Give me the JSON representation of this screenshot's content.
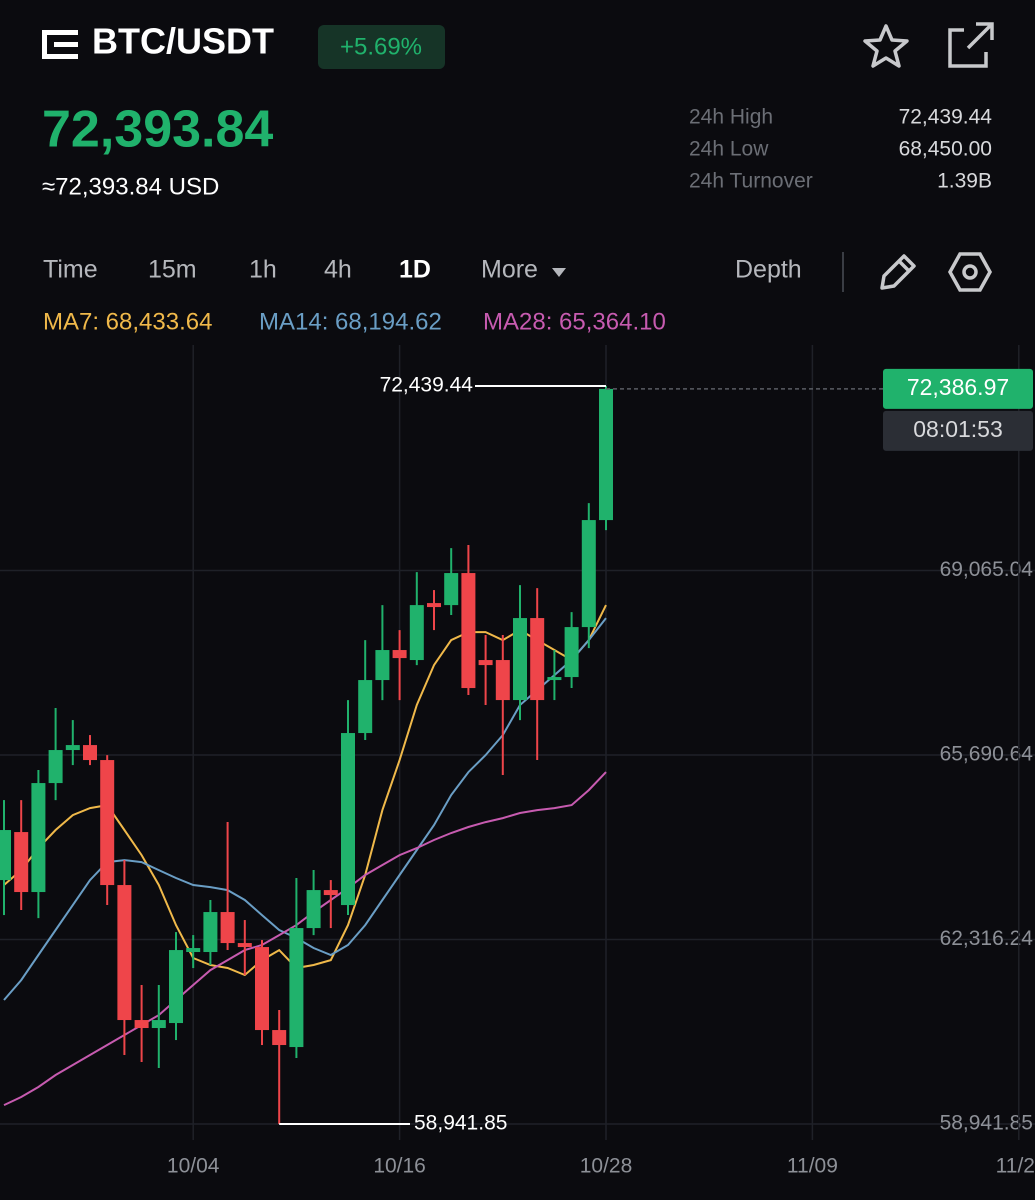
{
  "header": {
    "pair": "BTC/USDT",
    "change": "+5.69%",
    "price": "72,393.84",
    "price_usd": "≈72,393.84 USD"
  },
  "stats": [
    {
      "label": "24h High",
      "value": "72,439.44"
    },
    {
      "label": "24h Low",
      "value": "68,450.00"
    },
    {
      "label": "24h Turnover",
      "value": "1.39B"
    }
  ],
  "tabs": [
    "Time",
    "15m",
    "1h",
    "4h",
    "1D",
    "More"
  ],
  "depth": "Depth",
  "chart_data": {
    "type": "candlestick",
    "categories": [
      null,
      null,
      null,
      null,
      null,
      null,
      null,
      null,
      null,
      null,
      null,
      "10/04",
      null,
      null,
      null,
      null,
      null,
      null,
      null,
      null,
      null,
      null,
      null,
      "10/16",
      null,
      null,
      null,
      null,
      null,
      null,
      null,
      null,
      null,
      null,
      null,
      "10/28",
      null,
      null,
      null,
      null,
      null,
      null,
      null,
      null,
      null,
      null,
      null,
      "11/09",
      null,
      null,
      null,
      null,
      null,
      null,
      null,
      null,
      null,
      null,
      null,
      "11/2"
    ],
    "open": [
      63404,
      64282,
      63185,
      65178,
      65782,
      65873,
      65599,
      63313,
      60844,
      60698,
      60789,
      62088,
      62088,
      62819,
      62252,
      62179,
      60661,
      60350,
      62526,
      63221,
      62947,
      66093,
      67062,
      67611,
      67428,
      68470,
      68433,
      69019,
      67428,
      67428,
      66696,
      68196,
      67062,
      67117,
      68031,
      69988,
      null,
      null,
      null,
      null,
      null,
      null,
      null,
      null,
      null,
      null,
      null,
      null,
      null,
      null,
      null,
      null,
      null,
      null,
      null,
      null,
      null,
      null,
      null,
      null
    ],
    "high": [
      64867,
      64867,
      65416,
      66550,
      66330,
      66056,
      65690,
      63770,
      61484,
      61484,
      62453,
      62398,
      63039,
      64465,
      62673,
      62307,
      61027,
      63441,
      63587,
      63404,
      66696,
      67793,
      68433,
      67976,
      69037,
      68708,
      69476,
      69531,
      67885,
      67885,
      68799,
      68744,
      67611,
      68305,
      70299,
      72439.44,
      null,
      null,
      null,
      null,
      null,
      null,
      null,
      null,
      null,
      null,
      null,
      null,
      null,
      null,
      null,
      null,
      null,
      null,
      null,
      null,
      null,
      null,
      null,
      null
    ],
    "low": [
      62764,
      62856,
      62709,
      64867,
      65507,
      65507,
      62947,
      60204,
      60076,
      59966,
      60478,
      61795,
      61850,
      62124,
      61667,
      60387,
      58941.85,
      60149,
      62398,
      62526,
      62764,
      65965,
      66696,
      66696,
      67336,
      67976,
      68251,
      66788,
      66605,
      65325,
      66330,
      65599,
      66696,
      66916,
      67647,
      69805,
      null,
      null,
      null,
      null,
      null,
      null,
      null,
      null,
      null,
      null,
      null,
      null,
      null,
      null,
      null,
      null,
      null,
      null,
      null,
      null,
      null,
      null,
      null,
      null
    ],
    "close": [
      64319,
      63185,
      65178,
      65782,
      65873,
      65599,
      63313,
      60844,
      60698,
      60844,
      62124,
      62161,
      62819,
      62252,
      62179,
      60661,
      60387,
      62526,
      63221,
      63130,
      66093,
      67062,
      67611,
      67464,
      68433,
      68397,
      69019,
      66916,
      67336,
      66696,
      68196,
      66696,
      67117,
      68031,
      69988,
      72386.97,
      null,
      null,
      null,
      null,
      null,
      null,
      null,
      null,
      null,
      null,
      null,
      null,
      null,
      null,
      null,
      null,
      null,
      null,
      null,
      null,
      null,
      null,
      null,
      null
    ],
    "up_color": "#20b26c",
    "down_color": "#ef454a",
    "lines": [
      {
        "label": "MA7: 68,433.64",
        "color": "#f0b94a",
        "values": [
          63313,
          63587,
          63989,
          64319,
          64593,
          64721,
          64776,
          64319,
          63861,
          63313,
          62581,
          61978,
          61850,
          61795,
          61667,
          61941,
          62124,
          61795,
          61850,
          61941,
          62581,
          63496,
          64684,
          65599,
          66605,
          67336,
          67793,
          67940,
          67940,
          67793,
          67976,
          67793,
          67611,
          67428,
          67793,
          68433,
          null,
          null,
          null,
          null,
          null,
          null,
          null,
          null,
          null,
          null,
          null,
          null,
          null,
          null,
          null,
          null,
          null,
          null,
          null,
          null,
          null,
          null,
          null,
          null
        ]
      },
      {
        "label": "MA14: 68,194.62",
        "color": "#6a9ec5",
        "values": [
          61210,
          61575,
          62033,
          62490,
          62947,
          63404,
          63733,
          63770,
          63733,
          63587,
          63441,
          63313,
          63276,
          63221,
          63039,
          62764,
          62490,
          62344,
          62161,
          62033,
          62216,
          62581,
          63039,
          63496,
          63953,
          64410,
          64959,
          65379,
          65690,
          66056,
          66605,
          66879,
          67153,
          67428,
          67793,
          68196,
          null,
          null,
          null,
          null,
          null,
          null,
          null,
          null,
          null,
          null,
          null,
          null,
          null,
          null,
          null,
          null,
          null,
          null,
          null,
          null,
          null,
          null,
          null,
          null
        ]
      },
      {
        "label": "MA28: 65,364.10",
        "color": "#c75bb0",
        "values": [
          59289,
          59436,
          59619,
          59838,
          60021,
          60204,
          60387,
          60570,
          60753,
          60935,
          61210,
          61484,
          61758,
          61941,
          62124,
          62216,
          62398,
          62581,
          62819,
          63039,
          63258,
          63496,
          63679,
          63861,
          63989,
          64136,
          64264,
          64374,
          64465,
          64538,
          64630,
          64684,
          64721,
          64776,
          65050,
          65379,
          null,
          null,
          null,
          null,
          null,
          null,
          null,
          null,
          null,
          null,
          null,
          null,
          null,
          null,
          null,
          null,
          null,
          null,
          null,
          null,
          null,
          null,
          null,
          null
        ]
      }
    ],
    "ylim": [
      58650,
      73190
    ],
    "yticks": [
      {
        "value": 58941.85,
        "label": "58,941.85"
      },
      {
        "value": 62316.24,
        "label": "62,316.24"
      },
      {
        "value": 65690.64,
        "label": "65,690.64"
      },
      {
        "value": 69065.04,
        "label": "69,065.04"
      }
    ],
    "grid": true,
    "annotations": {
      "high": {
        "value": 72439.44,
        "label": "72,439.44"
      },
      "low": {
        "value": 58941.85,
        "label": "58,941.85"
      },
      "last": {
        "value": 72386.97,
        "label": "72,386.97"
      },
      "countdown": "08:01:53"
    }
  }
}
